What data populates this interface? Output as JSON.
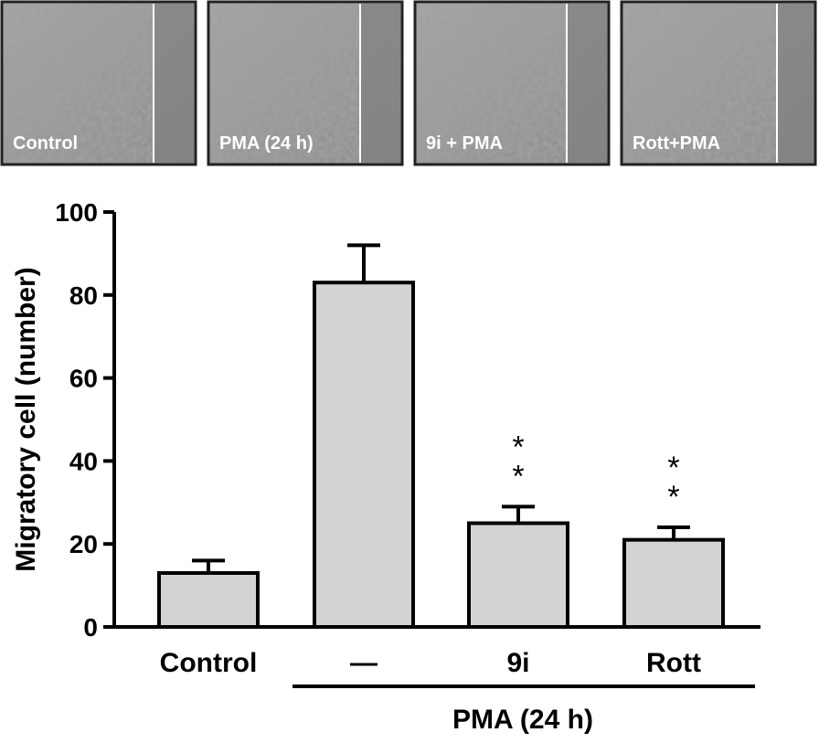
{
  "panels": [
    {
      "label": "Control"
    },
    {
      "label": "PMA (24 h)"
    },
    {
      "label": "9i + PMA"
    },
    {
      "label": "Rott+PMA"
    }
  ],
  "chart_data": {
    "type": "bar",
    "ylabel": "Migratory cell (number)",
    "categories": [
      "Control",
      "—",
      "9i",
      "Rott"
    ],
    "values": [
      13,
      83,
      25,
      21
    ],
    "errors": [
      3,
      9,
      4,
      3
    ],
    "significance": [
      null,
      null,
      "**",
      "**"
    ],
    "group_label": "PMA (24 h)",
    "color": "#d3d3d3",
    "ylim": [
      0,
      100
    ],
    "yticks": [
      0,
      20,
      40,
      60,
      80,
      100
    ]
  }
}
